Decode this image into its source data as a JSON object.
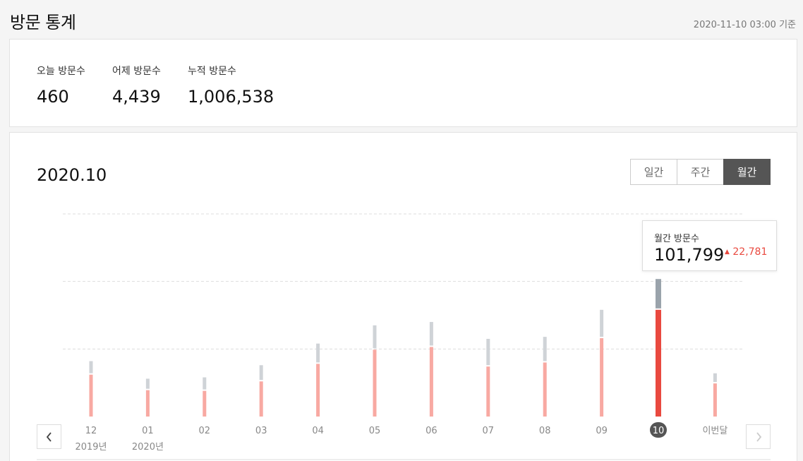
{
  "header": {
    "title": "방문 통계",
    "updated": "2020-11-10 03:00 기준"
  },
  "summary": {
    "today": {
      "label": "오늘 방문수",
      "value": "460"
    },
    "yesterday": {
      "label": "어제 방문수",
      "value": "4,439"
    },
    "total": {
      "label": "누적 방문수",
      "value": "1,006,538"
    }
  },
  "chart_panel": {
    "period_title": "2020.10",
    "period_options": [
      "일간",
      "주간",
      "월간"
    ],
    "selected_period": "월간",
    "tooltip": {
      "label": "월간 방문수",
      "value": "101,799",
      "change": "22,781",
      "change_direction": "up"
    },
    "nav": {
      "prev_icon": "chevron-left-icon",
      "next_icon": "chevron-right-icon"
    }
  },
  "chart_data": {
    "type": "bar",
    "categories": [
      "12",
      "01",
      "02",
      "03",
      "04",
      "05",
      "06",
      "07",
      "08",
      "09",
      "10",
      "이번달"
    ],
    "category_sublabels": [
      "2019년",
      "2020년",
      "",
      "",
      "",
      "",
      "",
      "",
      "",
      "",
      "",
      ""
    ],
    "series": [
      {
        "values": [
          31000,
          19500,
          19000,
          26000,
          39000,
          49500,
          51500,
          37000,
          40000,
          58000,
          79000,
          24500
        ]
      },
      {
        "values": [
          41000,
          28000,
          29000,
          38000,
          54000,
          67500,
          70000,
          57500,
          59000,
          79000,
          101799,
          32000
        ]
      }
    ],
    "highlight_index": 10,
    "ylim": [
      0,
      150000
    ],
    "grid": true,
    "colors": {
      "bar": "#f8a9a2",
      "bar_highlight": "#e9493f",
      "cap": "#cfd3d7",
      "cap_highlight": "#9aa3ab",
      "grid": "#dddddd",
      "axis": "#dddddd"
    }
  }
}
